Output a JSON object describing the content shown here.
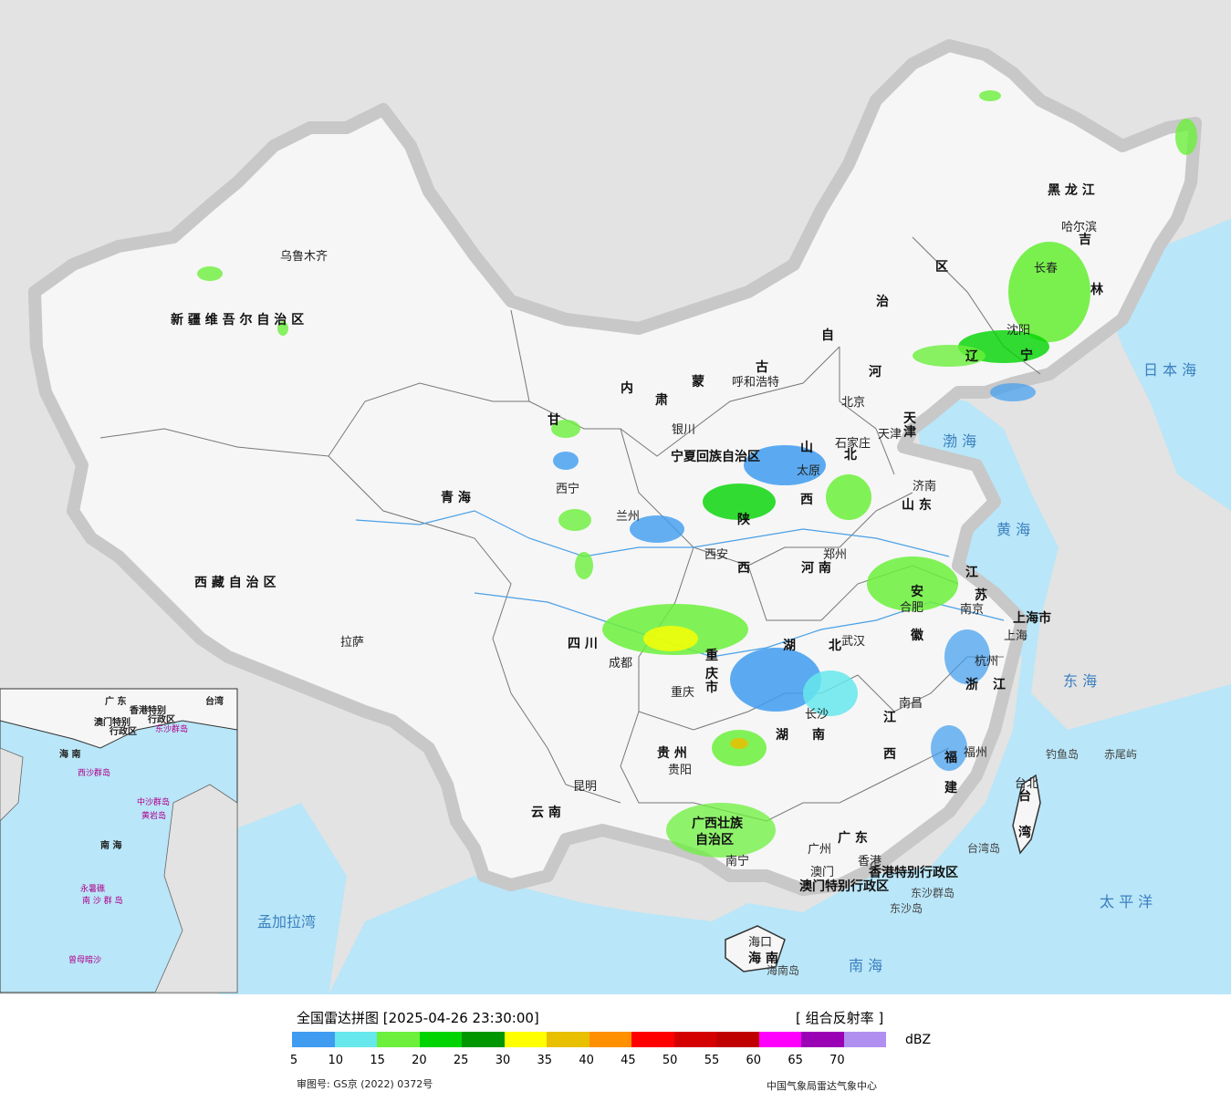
{
  "legend": {
    "title": "全国雷达拼图 [2025-04-26 23:30:00]",
    "product": "[ 组合反射率 ]",
    "unit": "dBZ",
    "colors": [
      "#3f9cf0",
      "#66e8ec",
      "#6cf03c",
      "#00d400",
      "#009600",
      "#ffff00",
      "#e8c000",
      "#ff9000",
      "#ff0000",
      "#d40000",
      "#c00000",
      "#ff00ff",
      "#9a00b4",
      "#b18ff0"
    ],
    "ticks": [
      "5",
      "10",
      "15",
      "20",
      "25",
      "30",
      "35",
      "40",
      "45",
      "50",
      "55",
      "60",
      "65",
      "70"
    ]
  },
  "footer": {
    "review_no": "审图号: GS京 (2022) 0372号",
    "producer": "中国气象局雷达气象中心"
  },
  "map": {
    "provinces": [
      "新 疆 维 吾 尔 自 治 区",
      "西 藏 自 治 区",
      "青 海",
      "四 川",
      "云 南",
      "甘",
      "肃",
      "内",
      "蒙",
      "古",
      "自",
      "治",
      "区",
      "黑 龙 江",
      "吉",
      "林",
      "辽",
      "宁",
      "河",
      "北",
      "山",
      "西",
      "陕",
      "西",
      "山 东",
      "河 南",
      "江",
      "苏",
      "安",
      "徽",
      "湖",
      "北",
      "湖",
      "南",
      "江",
      "西",
      "浙",
      "江",
      "福",
      "建",
      "贵 州",
      "广西壮族",
      "自治区",
      "广 东",
      "海 南",
      "台",
      "湾",
      "上海市",
      "重",
      "庆",
      "市",
      "天",
      "津",
      "香港特别行政区",
      "澳门特别行政区",
      "宁夏回族自治区"
    ],
    "cities": [
      "乌鲁木齐",
      "拉萨",
      "西宁",
      "兰州",
      "银川",
      "呼和浩特",
      "北京",
      "天津",
      "石家庄",
      "太原",
      "济南",
      "郑州",
      "西安",
      "成都",
      "重庆",
      "贵阳",
      "昆明",
      "南宁",
      "广州",
      "澳门",
      "香港",
      "海口",
      "长沙",
      "武汉",
      "南昌",
      "合肥",
      "南京",
      "上海",
      "杭州",
      "福州",
      "台北",
      "沈阳",
      "长春",
      "哈尔滨"
    ],
    "seas": [
      "渤 海",
      "黄 海",
      "东 海",
      "日 本 海",
      "南 海",
      "太 平 洋",
      "孟加拉湾"
    ],
    "islands": [
      "钓鱼岛",
      "赤尾屿",
      "台湾岛",
      "东沙群岛",
      "东沙岛",
      "海南岛"
    ],
    "inset": {
      "regions": [
        "广 东",
        "香港特别",
        "行政区",
        "澳门特别",
        "行政区",
        "台湾",
        "海 南",
        "南 海"
      ],
      "islands": [
        "东沙群岛",
        "西沙群岛",
        "中沙群岛",
        "黄岩岛",
        "南 沙 群 岛",
        "永暑礁",
        "曾母暗沙"
      ]
    }
  }
}
